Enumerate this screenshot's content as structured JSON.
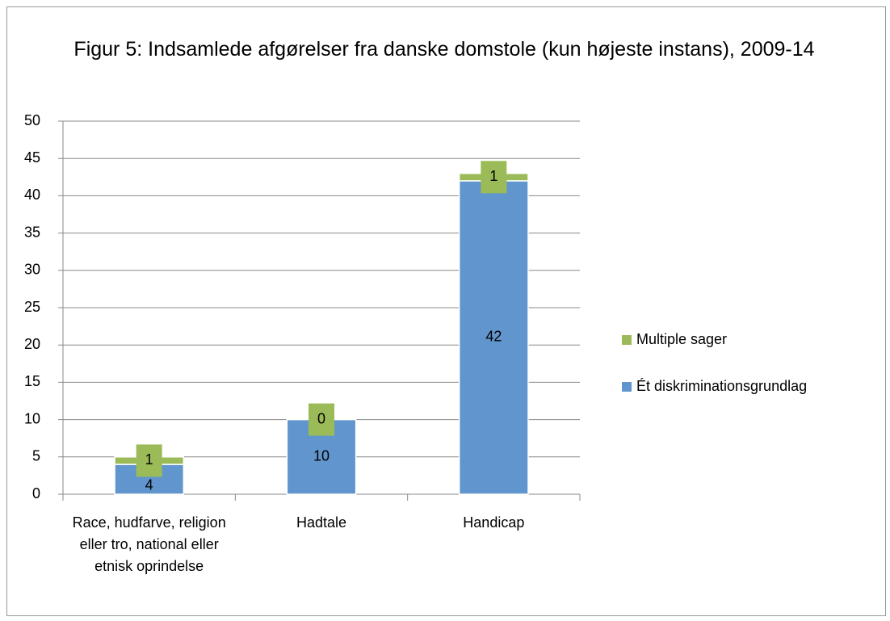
{
  "chart_data": {
    "type": "stacked_bar",
    "title": "Figur 5: Indsamlede afgørelser fra danske domstole (kun højeste instans), 2009-14",
    "categories": [
      "Race, hudfarve, religion eller tro, national eller etnisk oprindelse",
      "Hadtale",
      "Handicap"
    ],
    "series": [
      {
        "name": "Ét diskriminationsgrundlag",
        "color": "#6096cd",
        "values": [
          4,
          10,
          42
        ]
      },
      {
        "name": "Multiple sager",
        "color": "#9bbb59",
        "values": [
          1,
          0,
          1
        ]
      }
    ],
    "ylim": [
      0,
      50
    ],
    "yticks": [
      0,
      5,
      10,
      15,
      20,
      25,
      30,
      35,
      40,
      45,
      50
    ],
    "grid": true,
    "legend": "right"
  }
}
